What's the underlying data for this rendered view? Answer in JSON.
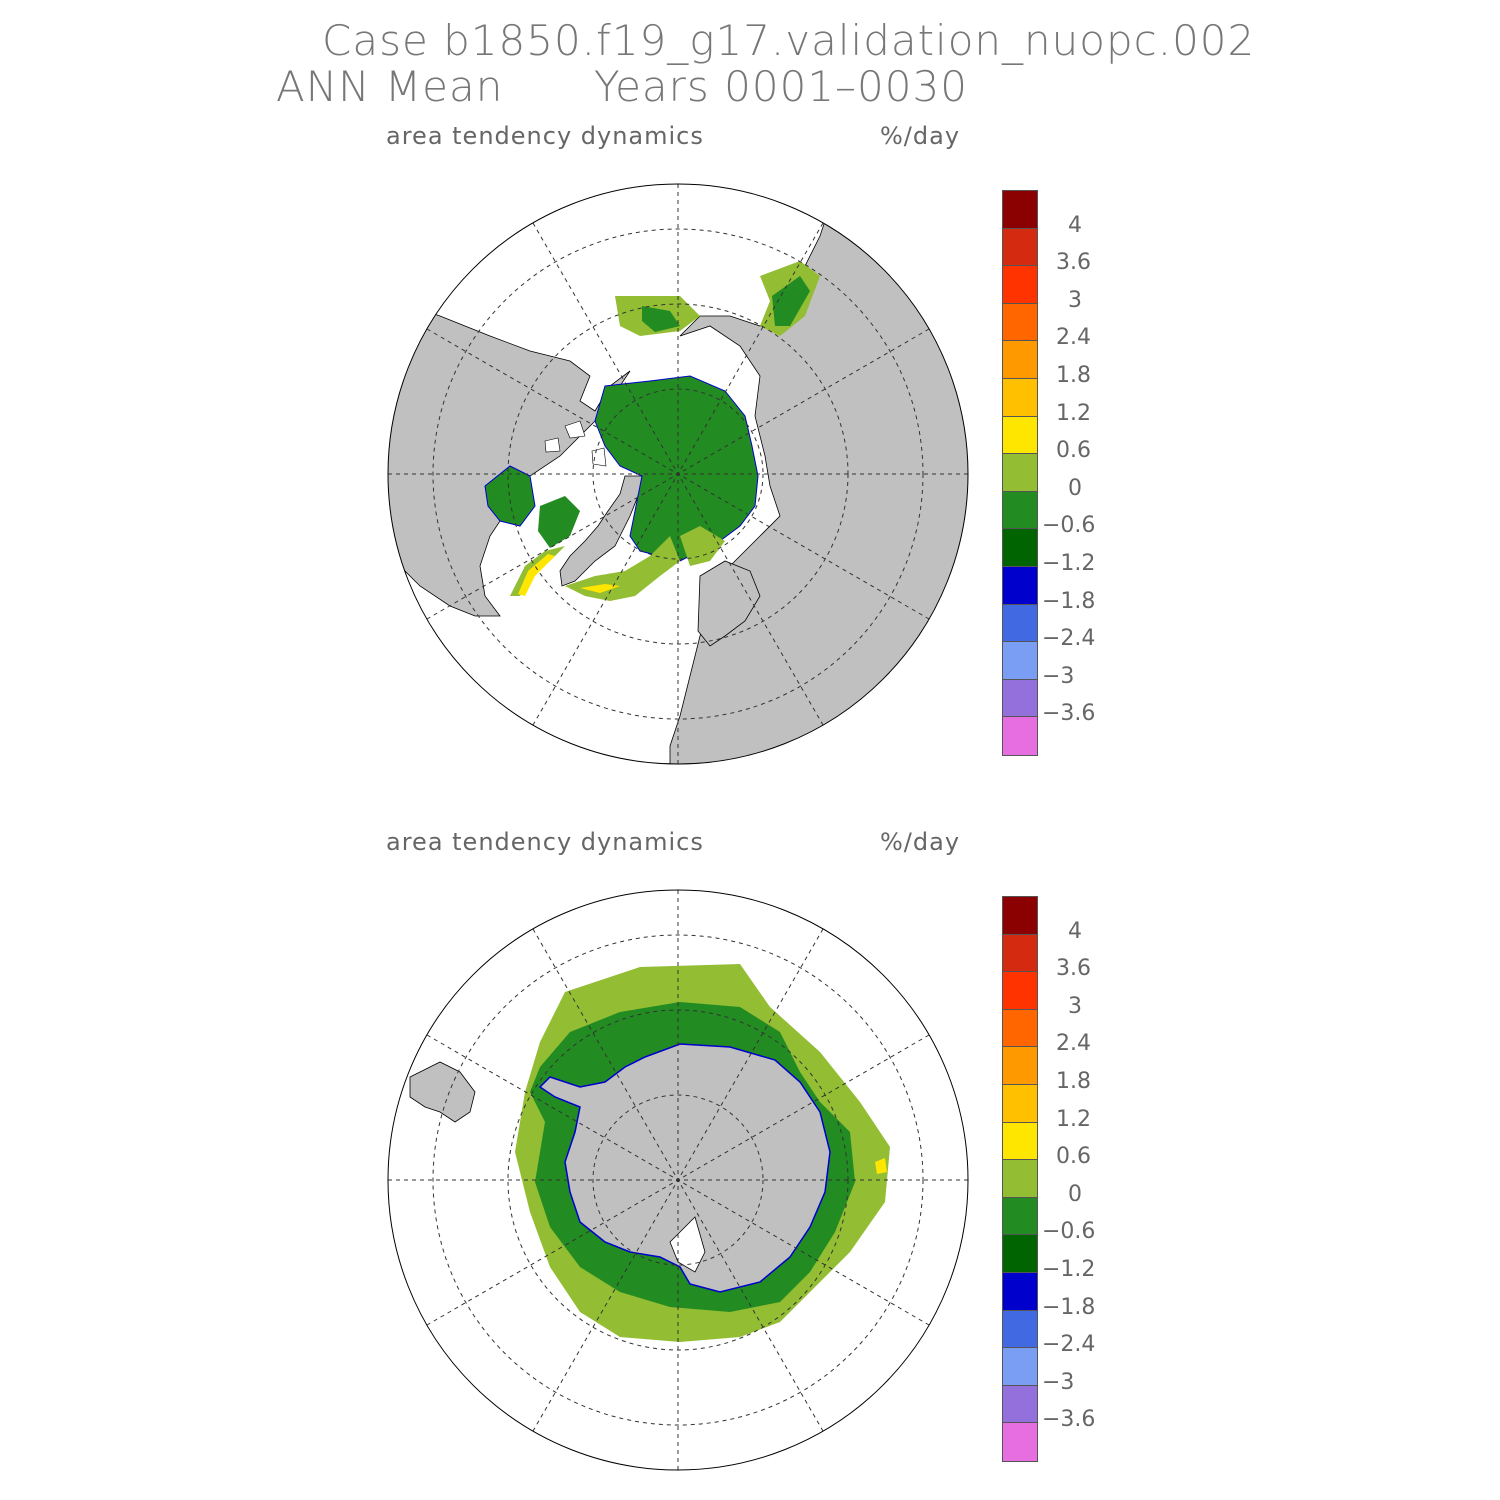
{
  "header": {
    "line1": "Case b1850.f19_g17.validation_nuopc.002",
    "line2_left": "ANN Mean",
    "line2_right": "Years 0001–0030"
  },
  "panels": [
    {
      "id": "north",
      "field": "area tendency dynamics",
      "units": "%/day",
      "hemisphere": "north"
    },
    {
      "id": "south",
      "field": "area tendency dynamics",
      "units": "%/day",
      "hemisphere": "south"
    }
  ],
  "colorbar": {
    "colors": [
      "#8b0000",
      "#d42a10",
      "#ff3300",
      "#ff6600",
      "#ff9900",
      "#ffc000",
      "#ffe600",
      "#93bd33",
      "#228b22",
      "#006400",
      "#0000cd",
      "#4169e1",
      "#7b9ef5",
      "#9370db",
      "#e66ee0"
    ],
    "labels": [
      "4",
      "3.6",
      "3",
      "2.4",
      "1.8",
      "1.2",
      "0.6",
      "0",
      "−0.6",
      "−1.2",
      "−1.8",
      "−2.4",
      "−3",
      "−3.6"
    ]
  },
  "colors": {
    "land": "#c0c0c0",
    "ocean": "#ffffff",
    "ice_main": "#228b22",
    "ice_edge": "#93bd33"
  }
}
